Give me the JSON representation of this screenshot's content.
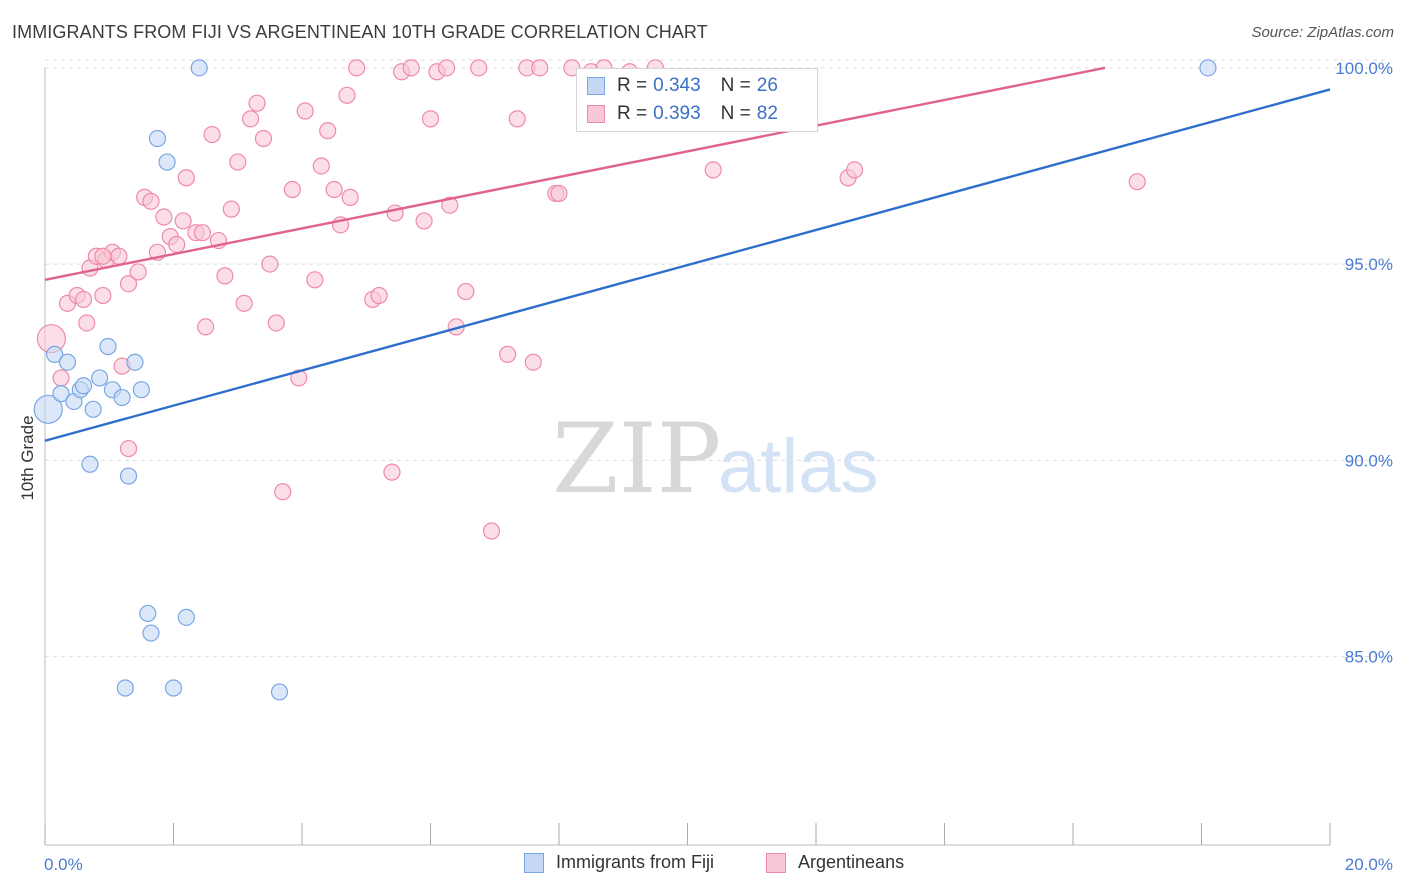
{
  "title": "IMMIGRANTS FROM FIJI VS ARGENTINEAN 10TH GRADE CORRELATION CHART",
  "source": "Source: ZipAtlas.com",
  "watermark": {
    "zip": "ZIP",
    "atlas": "atlas"
  },
  "colors": {
    "fiji": "#7aa6e6",
    "fiji_fill": "#c4d8f5",
    "fiji_line": "#2e6fcb",
    "arg": "#f08aa8",
    "arg_fill": "#f9c8d7",
    "arg_line": "#e0628a",
    "tick": "#4a7bd0",
    "grid": "#dddddd"
  },
  "legend": {
    "fiji": {
      "r_label": "R =",
      "r_value": "0.343",
      "n_label": "N =",
      "n_value": "26"
    },
    "arg": {
      "r_label": "R =",
      "r_value": "0.393",
      "n_label": "N =",
      "n_value": "82"
    }
  },
  "bottom_legend": {
    "fiji": "Immigrants from Fiji",
    "arg": "Argentineans"
  },
  "chart_data": {
    "type": "scatter",
    "title": "IMMIGRANTS FROM FIJI VS ARGENTINEAN 10TH GRADE CORRELATION CHART",
    "xlabel": "",
    "ylabel": "10th Grade",
    "xlim": [
      0,
      20
    ],
    "ylim": [
      80.2,
      100.2
    ],
    "x_tick_labels": [
      "0.0%",
      "20.0%"
    ],
    "y_ticks": [
      85,
      90,
      95,
      100
    ],
    "y_tick_labels": [
      "85.0%",
      "90.0%",
      "95.0%",
      "100.0%"
    ],
    "x_minor_ticks": [
      0,
      2,
      4,
      6,
      8,
      10,
      12,
      14,
      16,
      18,
      20
    ],
    "series": [
      {
        "name": "Immigrants from Fiji",
        "r": 0.343,
        "n": 26,
        "trend": {
          "x": [
            0,
            20
          ],
          "y": [
            90.5,
            99.45
          ]
        },
        "points": [
          {
            "x": 0.05,
            "y": 91.3,
            "big": true
          },
          {
            "x": 0.15,
            "y": 92.7
          },
          {
            "x": 0.35,
            "y": 92.5
          },
          {
            "x": 0.25,
            "y": 91.7
          },
          {
            "x": 0.45,
            "y": 91.5
          },
          {
            "x": 0.55,
            "y": 91.8
          },
          {
            "x": 0.6,
            "y": 91.9
          },
          {
            "x": 0.75,
            "y": 91.3
          },
          {
            "x": 0.85,
            "y": 92.1
          },
          {
            "x": 0.98,
            "y": 92.9
          },
          {
            "x": 1.05,
            "y": 91.8
          },
          {
            "x": 1.2,
            "y": 91.6
          },
          {
            "x": 1.4,
            "y": 92.5
          },
          {
            "x": 1.5,
            "y": 91.8
          },
          {
            "x": 0.7,
            "y": 89.9
          },
          {
            "x": 1.3,
            "y": 89.6
          },
          {
            "x": 1.75,
            "y": 98.2
          },
          {
            "x": 1.9,
            "y": 97.6
          },
          {
            "x": 2.4,
            "y": 100.0
          },
          {
            "x": 1.6,
            "y": 86.1
          },
          {
            "x": 1.65,
            "y": 85.6
          },
          {
            "x": 2.2,
            "y": 86.0
          },
          {
            "x": 1.25,
            "y": 84.2
          },
          {
            "x": 2.0,
            "y": 84.2
          },
          {
            "x": 3.65,
            "y": 84.1
          },
          {
            "x": 18.1,
            "y": 100.0
          }
        ]
      },
      {
        "name": "Argentineans",
        "r": 0.393,
        "n": 82,
        "trend": {
          "x": [
            0,
            16.5
          ],
          "y": [
            94.6,
            100.0
          ]
        },
        "points": [
          {
            "x": 0.1,
            "y": 93.1,
            "big": true
          },
          {
            "x": 0.25,
            "y": 92.1
          },
          {
            "x": 0.35,
            "y": 94.0
          },
          {
            "x": 0.5,
            "y": 94.2
          },
          {
            "x": 0.6,
            "y": 94.1
          },
          {
            "x": 0.65,
            "y": 93.5
          },
          {
            "x": 0.7,
            "y": 94.9
          },
          {
            "x": 0.8,
            "y": 95.2
          },
          {
            "x": 0.9,
            "y": 94.2
          },
          {
            "x": 0.95,
            "y": 95.1
          },
          {
            "x": 1.05,
            "y": 95.3
          },
          {
            "x": 1.15,
            "y": 95.2
          },
          {
            "x": 1.2,
            "y": 92.4
          },
          {
            "x": 1.3,
            "y": 94.5
          },
          {
            "x": 1.45,
            "y": 94.8
          },
          {
            "x": 1.55,
            "y": 96.7
          },
          {
            "x": 1.65,
            "y": 96.6
          },
          {
            "x": 1.75,
            "y": 95.3
          },
          {
            "x": 1.85,
            "y": 96.2
          },
          {
            "x": 1.95,
            "y": 95.7
          },
          {
            "x": 2.05,
            "y": 95.5
          },
          {
            "x": 2.15,
            "y": 96.1
          },
          {
            "x": 2.2,
            "y": 97.2
          },
          {
            "x": 2.35,
            "y": 95.8
          },
          {
            "x": 2.45,
            "y": 95.8
          },
          {
            "x": 2.5,
            "y": 93.4
          },
          {
            "x": 2.6,
            "y": 98.3
          },
          {
            "x": 2.7,
            "y": 95.6
          },
          {
            "x": 2.8,
            "y": 94.7
          },
          {
            "x": 2.9,
            "y": 96.4
          },
          {
            "x": 3.0,
            "y": 97.6
          },
          {
            "x": 3.1,
            "y": 94.0
          },
          {
            "x": 3.2,
            "y": 98.7
          },
          {
            "x": 3.3,
            "y": 99.1
          },
          {
            "x": 3.4,
            "y": 98.2
          },
          {
            "x": 3.5,
            "y": 95.0
          },
          {
            "x": 3.6,
            "y": 93.5
          },
          {
            "x": 3.7,
            "y": 89.2
          },
          {
            "x": 3.85,
            "y": 96.9
          },
          {
            "x": 3.95,
            "y": 92.1
          },
          {
            "x": 4.05,
            "y": 98.9
          },
          {
            "x": 4.2,
            "y": 94.6
          },
          {
            "x": 4.3,
            "y": 97.5
          },
          {
            "x": 4.4,
            "y": 98.4
          },
          {
            "x": 4.5,
            "y": 96.9
          },
          {
            "x": 4.6,
            "y": 96.0
          },
          {
            "x": 4.7,
            "y": 99.3
          },
          {
            "x": 4.75,
            "y": 96.7
          },
          {
            "x": 4.85,
            "y": 100.0
          },
          {
            "x": 5.1,
            "y": 94.1
          },
          {
            "x": 5.2,
            "y": 94.2
          },
          {
            "x": 5.4,
            "y": 89.7
          },
          {
            "x": 5.45,
            "y": 96.3
          },
          {
            "x": 5.55,
            "y": 99.9
          },
          {
            "x": 5.7,
            "y": 100.0
          },
          {
            "x": 5.9,
            "y": 96.1
          },
          {
            "x": 6.0,
            "y": 98.7
          },
          {
            "x": 6.1,
            "y": 99.9
          },
          {
            "x": 6.25,
            "y": 100.0
          },
          {
            "x": 6.3,
            "y": 96.5
          },
          {
            "x": 6.4,
            "y": 93.4
          },
          {
            "x": 6.55,
            "y": 94.3
          },
          {
            "x": 6.75,
            "y": 100.0
          },
          {
            "x": 6.95,
            "y": 88.2
          },
          {
            "x": 7.2,
            "y": 92.7
          },
          {
            "x": 7.35,
            "y": 98.7
          },
          {
            "x": 7.5,
            "y": 100.0
          },
          {
            "x": 7.6,
            "y": 92.5
          },
          {
            "x": 7.7,
            "y": 100.0
          },
          {
            "x": 7.95,
            "y": 96.8
          },
          {
            "x": 8.0,
            "y": 96.8
          },
          {
            "x": 8.2,
            "y": 100.0
          },
          {
            "x": 8.5,
            "y": 99.9
          },
          {
            "x": 8.7,
            "y": 100.0
          },
          {
            "x": 9.1,
            "y": 99.9
          },
          {
            "x": 10.4,
            "y": 97.4
          },
          {
            "x": 12.5,
            "y": 97.2
          },
          {
            "x": 12.6,
            "y": 97.4
          },
          {
            "x": 17.0,
            "y": 97.1
          },
          {
            "x": 9.5,
            "y": 100.0
          },
          {
            "x": 1.3,
            "y": 90.3
          },
          {
            "x": 0.9,
            "y": 95.2
          }
        ]
      }
    ]
  }
}
